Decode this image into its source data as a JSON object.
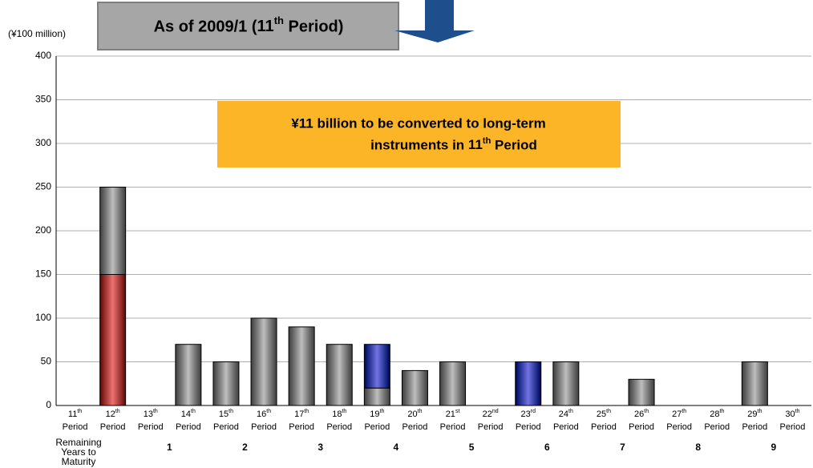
{
  "chart_data": {
    "type": "bar",
    "stacked": true,
    "title": "As of 2009/1 (11th Period)",
    "y_label": "(¥100 million)",
    "annotation": [
      "¥11 billion to be converted to long-term",
      "instruments in 11th Period"
    ],
    "categories": [
      "11th Period",
      "12th Period",
      "13th Period",
      "14th Period",
      "15th Period",
      "16th Period",
      "17th Period",
      "18th Period",
      "19th Period",
      "20th Period",
      "21st Period",
      "22nd Period",
      "23rd Period",
      "24th Period",
      "25th Period",
      "26th Period",
      "27th Period",
      "28th Period",
      "29th Period",
      "30th Period"
    ],
    "series": [
      {
        "color": "#e00000",
        "values": [
          null,
          150,
          null,
          null,
          null,
          null,
          null,
          null,
          null,
          null,
          null,
          null,
          null,
          null,
          null,
          null,
          null,
          null,
          null,
          null
        ]
      },
      {
        "color": "#8a8a8a",
        "values": [
          null,
          100,
          null,
          70,
          50,
          100,
          90,
          70,
          20,
          40,
          50,
          null,
          null,
          50,
          null,
          30,
          null,
          null,
          50,
          null
        ]
      },
      {
        "color": "#0000d0",
        "values": [
          null,
          null,
          null,
          null,
          null,
          null,
          null,
          null,
          50,
          null,
          null,
          null,
          50,
          null,
          null,
          null,
          null,
          null,
          null,
          null
        ]
      }
    ],
    "ylim": [
      0,
      400
    ],
    "yticks": [
      0,
      50,
      100,
      150,
      200,
      250,
      300,
      350,
      400
    ],
    "grid": true,
    "remaining_years": {
      "label": [
        "Remaining",
        "Years to",
        "Maturity"
      ],
      "values": [
        1,
        2,
        3,
        4,
        5,
        6,
        7,
        8,
        9
      ]
    }
  }
}
